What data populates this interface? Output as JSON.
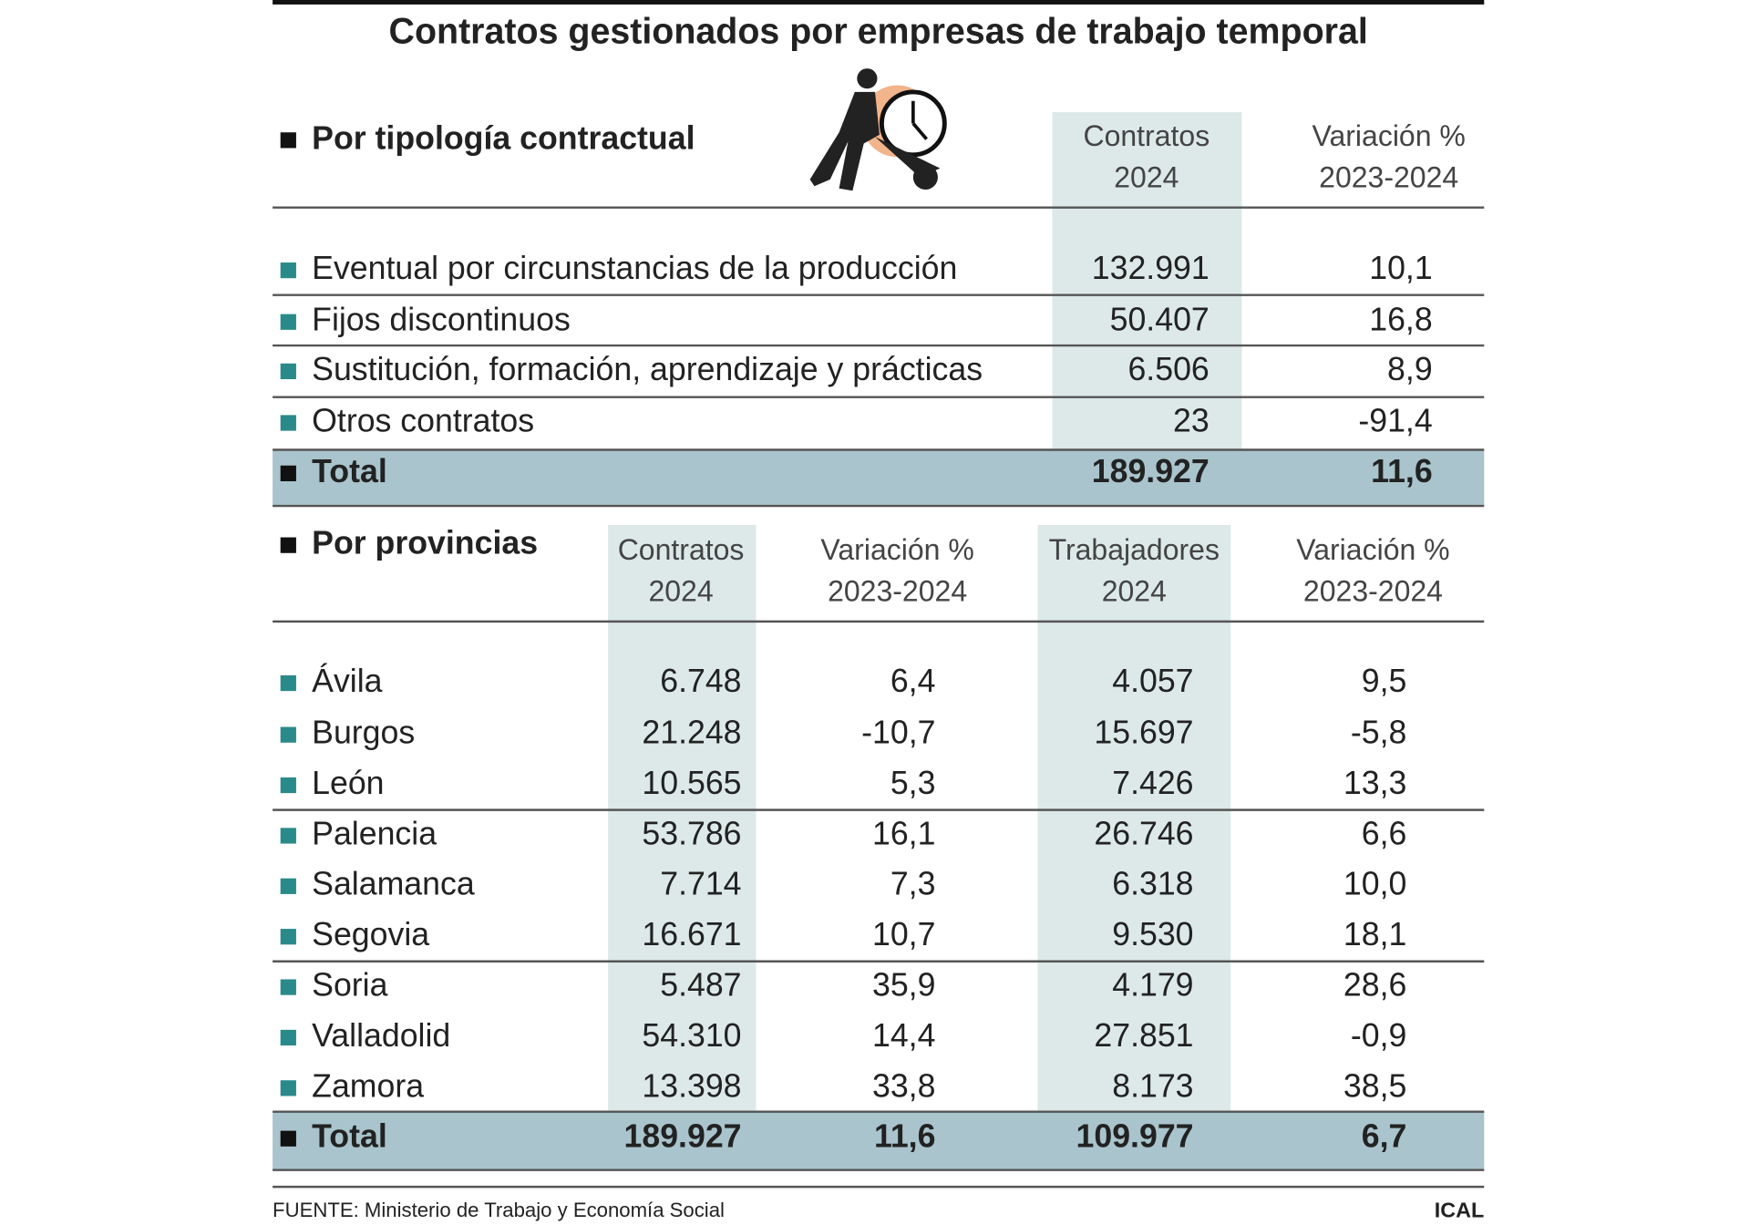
{
  "title": "Contratos gestionados por empresas de trabajo temporal",
  "section1": {
    "heading": "Por tipología contractual",
    "columns": [
      [
        "Contratos",
        "2024"
      ],
      [
        "Variación %",
        "2023-2024"
      ]
    ],
    "rows": [
      {
        "label": "Eventual por circunstancias de la producción",
        "values": [
          "132.991",
          "10,1"
        ]
      },
      {
        "label": "Fijos discontinuos",
        "values": [
          "50.407",
          "16,8"
        ]
      },
      {
        "label": "Sustitución, formación, aprendizaje y prácticas",
        "values": [
          "6.506",
          "8,9"
        ]
      },
      {
        "label": "Otros contratos",
        "values": [
          "23",
          "-91,4"
        ]
      }
    ],
    "total": {
      "label": "Total",
      "values": [
        "189.927",
        "11,6"
      ]
    }
  },
  "section2": {
    "heading": "Por provincias",
    "columns": [
      [
        "Contratos",
        "2024"
      ],
      [
        "Variación %",
        "2023-2024"
      ],
      [
        "Trabajadores",
        "2024"
      ],
      [
        "Variación %",
        "2023-2024"
      ]
    ],
    "rows": [
      {
        "label": "Ávila",
        "values": [
          "6.748",
          "6,4",
          "4.057",
          "9,5"
        ]
      },
      {
        "label": "Burgos",
        "values": [
          "21.248",
          "-10,7",
          "15.697",
          "-5,8"
        ]
      },
      {
        "label": "León",
        "values": [
          "10.565",
          "5,3",
          "7.426",
          "13,3"
        ]
      },
      {
        "label": "Palencia",
        "values": [
          "53.786",
          "16,1",
          "26.746",
          "6,6"
        ]
      },
      {
        "label": "Salamanca",
        "values": [
          "7.714",
          "7,3",
          "6.318",
          "10,0"
        ]
      },
      {
        "label": "Segovia",
        "values": [
          "16.671",
          "10,7",
          "9.530",
          "18,1"
        ]
      },
      {
        "label": "Soria",
        "values": [
          "5.487",
          "35,9",
          "4.179",
          "28,6"
        ]
      },
      {
        "label": "Valladolid",
        "values": [
          "54.310",
          "14,4",
          "27.851",
          "-0,9"
        ]
      },
      {
        "label": "Zamora",
        "values": [
          "13.398",
          "33,8",
          "8.173",
          "38,5"
        ]
      }
    ],
    "total": {
      "label": "Total",
      "values": [
        "189.927",
        "11,6",
        "109.977",
        "6,7"
      ]
    }
  },
  "footer": {
    "source": "FUENTE:  Ministerio de Trabajo y Economía Social",
    "credit": "ICAL"
  }
}
